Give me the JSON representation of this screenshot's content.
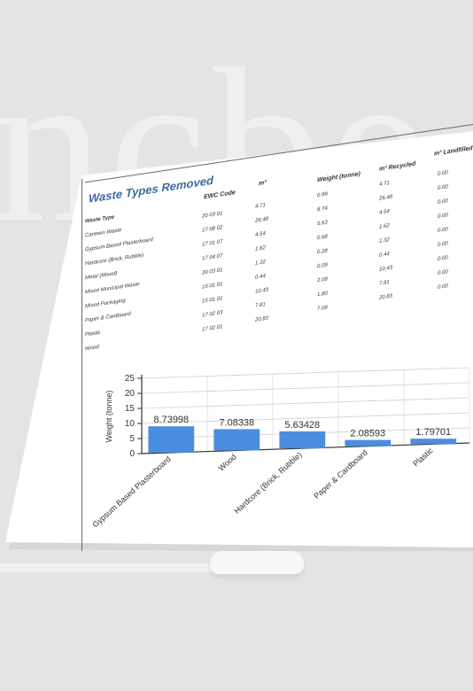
{
  "background_word": "ncbe",
  "report": {
    "title": "Waste Types Removed",
    "headers": {
      "waste_type": "Waste Type",
      "ewc_code": "EWC Code",
      "m3": "m³",
      "weight": "Weight (tonne)",
      "recycled": "m³ Recycled",
      "landfilled": "m³ Landfilled"
    },
    "waste_types": [
      "Canteen Waste",
      "Gypsum Based Plasterboard",
      "Hardcore (Brick, Rubble)",
      "Metal (Mixed)",
      "Mixed Municipal Waste",
      "Mixed Packaging",
      "Paper & Cardboard",
      "Plastic",
      "Wood"
    ],
    "ewc_codes": [
      "20 03 01",
      "17 08 02",
      "17 01 07",
      "17 04 07",
      "20 03 01",
      "15 01 01",
      "15 01 01",
      "17 02 03",
      "17 02 01"
    ],
    "m3": [
      "4.71",
      "26.48",
      "4.54",
      "1.62",
      "1.32",
      "0.44",
      "10.43",
      "7.81",
      "20.83"
    ],
    "weight": [
      "0.99",
      "8.74",
      "5.63",
      "0.68",
      "0.28",
      "0.09",
      "2.09",
      "1.80",
      "7.08"
    ],
    "recycled": [
      "4.71",
      "26.48",
      "4.54",
      "1.62",
      "1.32",
      "0.44",
      "10.43",
      "7.81",
      "20.83"
    ],
    "landfilled": [
      "0.00",
      "0.00",
      "0.00",
      "0.00",
      "0.00",
      "0.00",
      "0.00",
      "0.00",
      "0.00"
    ]
  },
  "chart_data": {
    "type": "bar",
    "categories": [
      "Gypsum Based Plasterboard",
      "Wood",
      "Hardcore (Brick, Rubble)",
      "Paper & Cardboard",
      "Plastic"
    ],
    "values": [
      8.73998,
      7.08338,
      5.63428,
      2.08593,
      1.79701
    ],
    "data_labels": [
      "8.73998",
      "7.08338",
      "5.63428",
      "2.08593",
      "1.79701"
    ],
    "ylabel": "Weight (tonne)",
    "ylim": [
      0,
      25
    ],
    "yticks": [
      "0",
      "5",
      "10",
      "15",
      "20",
      "25"
    ],
    "grid": true,
    "bar_color": "#4a8ee0"
  }
}
